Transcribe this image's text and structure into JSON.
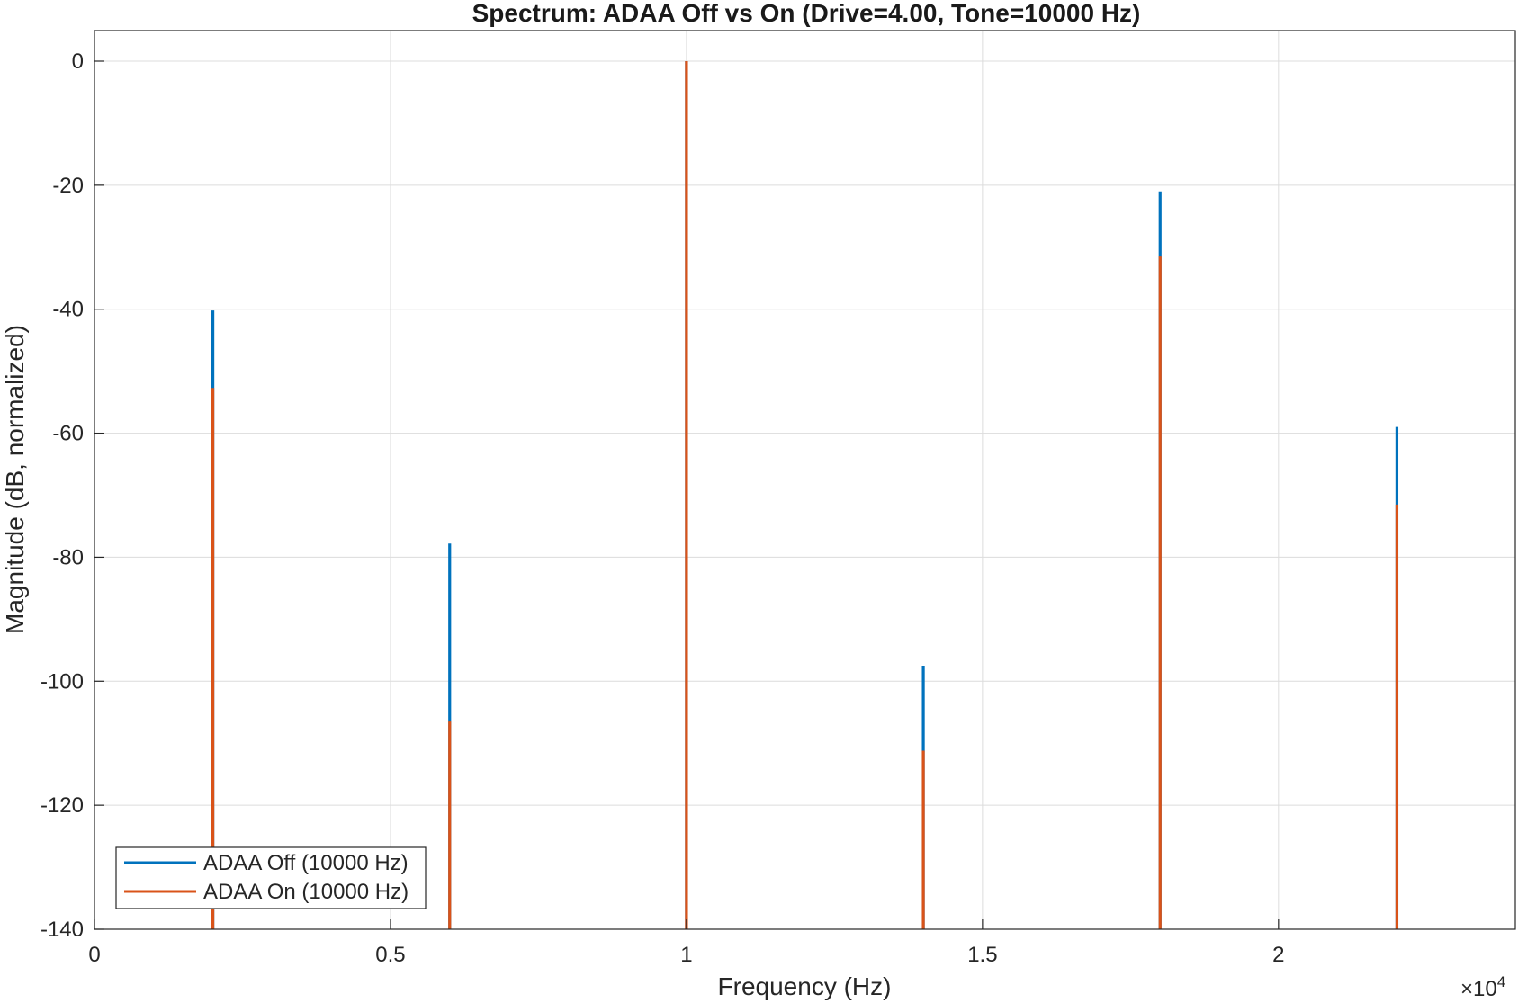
{
  "chart_data": {
    "type": "stem",
    "title": "Spectrum: ADAA Off vs On (Drive=4.00, Tone=10000 Hz)",
    "xlabel": "Frequency (Hz)",
    "ylabel": "Magnitude (dB, normalized)",
    "xlim": [
      0,
      24000
    ],
    "ylim": [
      -140,
      5
    ],
    "x_ticks": [
      0,
      5000,
      10000,
      15000,
      20000
    ],
    "x_tick_labels": [
      "0",
      "0.5",
      "1",
      "1.5",
      "2"
    ],
    "x_exponent_prefix": "×10",
    "x_exponent_power": "4",
    "y_ticks": [
      0,
      -20,
      -40,
      -60,
      -80,
      -100,
      -120,
      -140
    ],
    "y_tick_labels": [
      "0",
      "-20",
      "-40",
      "-60",
      "-80",
      "-100",
      "-120",
      "-140"
    ],
    "grid": true,
    "legend_location": "bottom-left",
    "series": [
      {
        "name": "ADAA Off (10000 Hz)",
        "color": "#0072BD",
        "x": [
          2000,
          6000,
          10000,
          14000,
          18000,
          22000
        ],
        "values": [
          -40.2,
          -77.8,
          0,
          -97.5,
          -21.0,
          -59.0
        ]
      },
      {
        "name": "ADAA On (10000 Hz)",
        "color": "#D95319",
        "x": [
          2000,
          6000,
          10000,
          14000,
          18000,
          22000
        ],
        "values": [
          -52.7,
          -106.5,
          0,
          -111.2,
          -31.5,
          -71.5
        ]
      }
    ]
  }
}
